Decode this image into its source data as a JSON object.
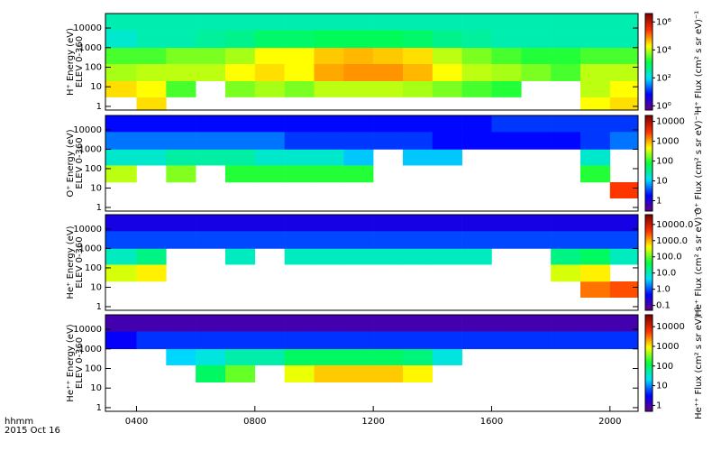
{
  "chart_data": [
    {
      "type": "heatmap",
      "ylabel": "H⁺ Energy (eV)",
      "ylabel2": "ELEV 0-360",
      "colorbar_label": "H⁺ Flux (cm² s sr eV)⁻¹",
      "colormap": [
        "#6a0080",
        "#0000ff",
        "#00e0ff",
        "#00ff40",
        "#ffff00",
        "#ff3000",
        "#800000"
      ],
      "log_y": true,
      "log_z": true,
      "xlim": [
        2.95,
        20.95
      ],
      "ylim": [
        0.65,
        55000
      ],
      "zlim": [
        0.5,
        4000000
      ],
      "yticks": [
        1,
        10,
        100,
        1000,
        10000
      ],
      "zticks": [
        {
          "value": 1,
          "label": "10⁰"
        },
        {
          "value": 100,
          "label": "10²"
        },
        {
          "value": 10000,
          "label": "10⁴"
        },
        {
          "value": 1000000,
          "label": "10⁶"
        }
      ],
      "xbins": [
        2.95,
        4,
        5,
        6,
        7,
        8,
        9,
        10,
        11,
        12,
        13,
        14,
        15,
        16,
        17,
        18,
        19,
        20,
        20.95
      ],
      "ybins": [
        0.65,
        3,
        20,
        150,
        1000,
        8000,
        55000
      ],
      "z": [
        [
          null,
          30000,
          null,
          null,
          null,
          null,
          null,
          null,
          null,
          null,
          null,
          null,
          null,
          null,
          null,
          null,
          20000,
          30000
        ],
        [
          30000,
          20000,
          3000,
          null,
          5000,
          8000,
          5000,
          10000,
          10000,
          10000,
          8000,
          5000,
          3000,
          2000,
          null,
          null,
          10000,
          20000
        ],
        [
          8000,
          10000,
          10000,
          10000,
          20000,
          30000,
          20000,
          60000,
          80000,
          80000,
          50000,
          20000,
          10000,
          8000,
          5000,
          3000,
          10000,
          10000
        ],
        [
          3000,
          3000,
          5000,
          5000,
          8000,
          20000,
          20000,
          40000,
          50000,
          40000,
          30000,
          10000,
          5000,
          3000,
          2000,
          2000,
          3000,
          3000
        ],
        [
          200,
          300,
          300,
          400,
          500,
          800,
          800,
          1000,
          1000,
          1000,
          800,
          500,
          400,
          300,
          300,
          300,
          300,
          300
        ],
        [
          300,
          300,
          300,
          300,
          300,
          300,
          300,
          300,
          300,
          300,
          300,
          300,
          300,
          300,
          300,
          300,
          300,
          300
        ]
      ]
    },
    {
      "type": "heatmap",
      "ylabel": "O⁺ Energy (eV)",
      "ylabel2": "ELEV 0-360",
      "colorbar_label": "O⁺ Flux (cm² s sr eV)⁻¹",
      "colormap": [
        "#6a0080",
        "#0000ff",
        "#00e0ff",
        "#00ff40",
        "#ffff00",
        "#ff3000",
        "#800000"
      ],
      "log_y": true,
      "log_z": true,
      "xlim": [
        2.95,
        20.95
      ],
      "ylim": [
        0.65,
        55000
      ],
      "zlim": [
        0.3,
        20000
      ],
      "yticks": [
        1,
        10,
        100,
        1000,
        10000
      ],
      "zticks": [
        1,
        10,
        100,
        1000,
        10000
      ],
      "xbins": [
        2.95,
        4,
        5,
        6,
        7,
        8,
        9,
        10,
        11,
        12,
        13,
        14,
        15,
        16,
        17,
        18,
        19,
        20,
        20.95
      ],
      "ybins": [
        0.65,
        3,
        20,
        150,
        1000,
        8000,
        55000
      ],
      "z": [
        [
          null,
          null,
          null,
          null,
          null,
          null,
          null,
          null,
          null,
          null,
          null,
          null,
          null,
          null,
          null,
          null,
          null,
          null
        ],
        [
          null,
          null,
          null,
          null,
          null,
          null,
          null,
          null,
          null,
          null,
          null,
          null,
          null,
          null,
          null,
          null,
          null,
          3000
        ],
        [
          300,
          null,
          200,
          null,
          100,
          100,
          100,
          100,
          100,
          null,
          null,
          null,
          null,
          null,
          null,
          null,
          100,
          null
        ],
        [
          20,
          20,
          30,
          30,
          30,
          20,
          20,
          20,
          10,
          null,
          10,
          10,
          null,
          null,
          null,
          null,
          20,
          null
        ],
        [
          5,
          5,
          5,
          5,
          5,
          5,
          3,
          3,
          3,
          3,
          3,
          2,
          2,
          2,
          2,
          2,
          3,
          5
        ],
        [
          2,
          2,
          2,
          2,
          2,
          2,
          2,
          2,
          2,
          2,
          2,
          2,
          2,
          3,
          3,
          3,
          3,
          3
        ]
      ]
    },
    {
      "type": "heatmap",
      "ylabel": "He⁺ Energy (eV)",
      "ylabel2": "ELEV 0-360",
      "colorbar_label": "He⁺ Flux (cm² s sr eV)⁻¹",
      "colormap": [
        "#6a0080",
        "#0000ff",
        "#00e0ff",
        "#00ff40",
        "#ffff00",
        "#ff3000",
        "#800000"
      ],
      "log_y": true,
      "log_z": true,
      "xlim": [
        2.95,
        20.95
      ],
      "ylim": [
        0.65,
        55000
      ],
      "zlim": [
        0.05,
        40000
      ],
      "yticks": [
        1,
        10,
        100,
        1000,
        10000
      ],
      "zticks": [
        {
          "value": 0.1,
          "label": "0.1"
        },
        {
          "value": 1,
          "label": "1.0"
        },
        {
          "value": 10,
          "label": "10.0"
        },
        {
          "value": 100,
          "label": "100.0"
        },
        {
          "value": 1000,
          "label": "1000.0"
        },
        {
          "value": 10000,
          "label": "10000.0"
        }
      ],
      "xbins": [
        2.95,
        4,
        5,
        6,
        7,
        8,
        9,
        10,
        11,
        12,
        13,
        14,
        15,
        16,
        17,
        18,
        19,
        20,
        20.95
      ],
      "ybins": [
        0.65,
        3,
        20,
        150,
        1000,
        8000,
        55000
      ],
      "z": [
        [
          null,
          null,
          null,
          null,
          null,
          null,
          null,
          null,
          null,
          null,
          null,
          null,
          null,
          null,
          null,
          null,
          null,
          null
        ],
        [
          null,
          null,
          null,
          null,
          null,
          null,
          null,
          null,
          null,
          null,
          null,
          null,
          null,
          null,
          null,
          null,
          2000,
          3000
        ],
        [
          300,
          500,
          null,
          null,
          null,
          null,
          null,
          null,
          null,
          null,
          null,
          null,
          null,
          null,
          null,
          300,
          500,
          null
        ],
        [
          10,
          20,
          null,
          null,
          10,
          null,
          10,
          10,
          10,
          10,
          10,
          10,
          10,
          null,
          null,
          20,
          30,
          10
        ],
        [
          1,
          1,
          1,
          1,
          1,
          1,
          1,
          1,
          1,
          1,
          1,
          1,
          1,
          1,
          1,
          1,
          1,
          1
        ],
        [
          0.3,
          0.3,
          0.3,
          0.3,
          0.3,
          0.3,
          0.3,
          0.3,
          0.3,
          0.3,
          0.3,
          0.3,
          0.3,
          0.3,
          0.3,
          0.3,
          0.3,
          0.3
        ]
      ]
    },
    {
      "type": "heatmap",
      "ylabel": "He⁺⁺ Energy (eV)",
      "ylabel2": "ELEV 0-360",
      "colorbar_label": "He⁺⁺ Flux (cm² s sr eV)⁻¹",
      "colormap": [
        "#6a0080",
        "#0000ff",
        "#00e0ff",
        "#00ff40",
        "#ffff00",
        "#ff3000",
        "#800000"
      ],
      "log_y": true,
      "log_z": true,
      "xlim": [
        2.95,
        20.95
      ],
      "ylim": [
        0.65,
        55000
      ],
      "zlim": [
        0.5,
        40000
      ],
      "yticks": [
        1,
        10,
        100,
        1000,
        10000
      ],
      "zticks": [
        1,
        10,
        100,
        1000,
        10000
      ],
      "xticks": [
        {
          "value": 4,
          "label": "0400"
        },
        {
          "value": 8,
          "label": "0800"
        },
        {
          "value": 12,
          "label": "1200"
        },
        {
          "value": 16,
          "label": "1600"
        },
        {
          "value": 20,
          "label": "2000"
        }
      ],
      "xbins": [
        2.95,
        4,
        5,
        6,
        7,
        8,
        9,
        10,
        11,
        12,
        13,
        14,
        15,
        16,
        17,
        18,
        19,
        20,
        20.95
      ],
      "ybins": [
        0.65,
        3,
        20,
        150,
        1000,
        8000,
        55000
      ],
      "z": [
        [
          null,
          null,
          null,
          null,
          null,
          null,
          null,
          null,
          null,
          null,
          null,
          null,
          null,
          null,
          null,
          null,
          null,
          null
        ],
        [
          null,
          null,
          null,
          null,
          null,
          null,
          null,
          null,
          null,
          null,
          null,
          null,
          null,
          null,
          null,
          null,
          null,
          null
        ],
        [
          null,
          null,
          null,
          100,
          300,
          null,
          800,
          1500,
          1500,
          1500,
          1000,
          null,
          null,
          null,
          null,
          null,
          null,
          null
        ],
        [
          null,
          null,
          20,
          30,
          50,
          50,
          100,
          100,
          100,
          100,
          80,
          30,
          null,
          null,
          null,
          null,
          null,
          null
        ],
        [
          3,
          5,
          5,
          5,
          5,
          5,
          5,
          5,
          5,
          5,
          5,
          5,
          5,
          5,
          5,
          5,
          5,
          5
        ],
        [
          1,
          1,
          1,
          1,
          1,
          1,
          1,
          1,
          1,
          1,
          1,
          1,
          1,
          1,
          1,
          1,
          1,
          1
        ]
      ]
    }
  ],
  "footer": {
    "time_label": "hhmm",
    "date_label": "2015 Oct 16"
  }
}
